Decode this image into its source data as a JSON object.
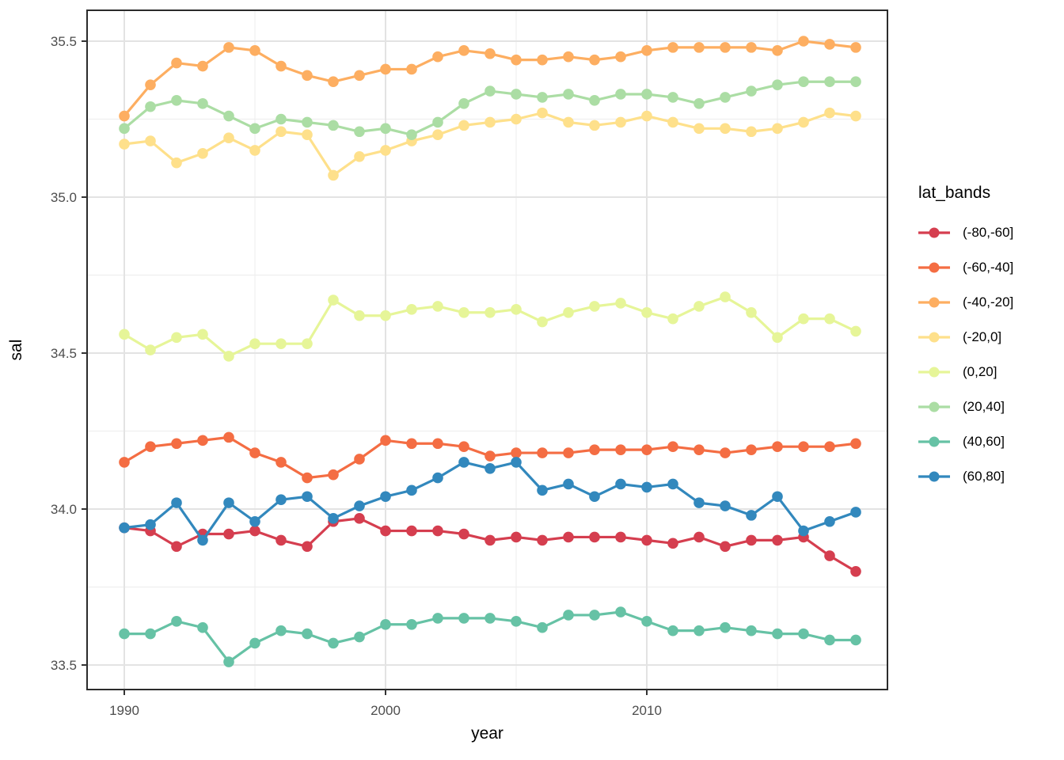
{
  "chart_data": {
    "type": "line",
    "title": "",
    "xlabel": "year",
    "ylabel": "sal",
    "legend_title": "lat_bands",
    "legend_position": "right",
    "grid": true,
    "xlim": [
      1988.6,
      2019.2
    ],
    "ylim": [
      33.42,
      35.6
    ],
    "x_ticks": [
      {
        "value": 1990,
        "label": "1990"
      },
      {
        "value": 2000,
        "label": "2000"
      },
      {
        "value": 2010,
        "label": "2010"
      }
    ],
    "x_minor_ticks": [
      1995,
      2005,
      2015
    ],
    "y_ticks": [
      {
        "value": 33.5,
        "label": "33.5"
      },
      {
        "value": 34.0,
        "label": "34.0"
      },
      {
        "value": 34.5,
        "label": "34.5"
      },
      {
        "value": 35.0,
        "label": "35.0"
      },
      {
        "value": 35.5,
        "label": "35.5"
      }
    ],
    "y_minor_ticks": [
      33.75,
      34.25,
      34.75,
      35.25
    ],
    "x": [
      1990,
      1991,
      1992,
      1993,
      1994,
      1995,
      1996,
      1997,
      1998,
      1999,
      2000,
      2001,
      2002,
      2003,
      2004,
      2005,
      2006,
      2007,
      2008,
      2009,
      2010,
      2011,
      2012,
      2013,
      2014,
      2015,
      2016,
      2017,
      2018
    ],
    "series": [
      {
        "name": "(-80,-60]",
        "color": "#d53e4f",
        "values": [
          33.94,
          33.93,
          33.88,
          33.92,
          33.92,
          33.93,
          33.9,
          33.88,
          33.96,
          33.97,
          33.93,
          33.93,
          33.93,
          33.92,
          33.9,
          33.91,
          33.9,
          33.91,
          33.91,
          33.91,
          33.9,
          33.89,
          33.91,
          33.88,
          33.9,
          33.9,
          33.91,
          33.85,
          33.8
        ]
      },
      {
        "name": "(-60,-40]",
        "color": "#f46d43",
        "values": [
          34.15,
          34.2,
          34.21,
          34.22,
          34.23,
          34.18,
          34.15,
          34.1,
          34.11,
          34.16,
          34.22,
          34.21,
          34.21,
          34.2,
          34.17,
          34.18,
          34.18,
          34.18,
          34.19,
          34.19,
          34.19,
          34.2,
          34.19,
          34.18,
          34.19,
          34.2,
          34.2,
          34.2,
          34.21
        ]
      },
      {
        "name": "(-40,-20]",
        "color": "#fdae61",
        "values": [
          35.26,
          35.36,
          35.43,
          35.42,
          35.48,
          35.47,
          35.42,
          35.39,
          35.37,
          35.39,
          35.41,
          35.41,
          35.45,
          35.47,
          35.46,
          35.44,
          35.44,
          35.45,
          35.44,
          35.45,
          35.47,
          35.48,
          35.48,
          35.48,
          35.48,
          35.47,
          35.5,
          35.49,
          35.48
        ]
      },
      {
        "name": "(-20,0]",
        "color": "#fee08b",
        "values": [
          35.17,
          35.18,
          35.11,
          35.14,
          35.19,
          35.15,
          35.21,
          35.2,
          35.07,
          35.13,
          35.15,
          35.18,
          35.2,
          35.23,
          35.24,
          35.25,
          35.27,
          35.24,
          35.23,
          35.24,
          35.26,
          35.24,
          35.22,
          35.22,
          35.21,
          35.22,
          35.24,
          35.27,
          35.26
        ]
      },
      {
        "name": "(0,20]",
        "color": "#e6f598",
        "values": [
          34.56,
          34.51,
          34.55,
          34.56,
          34.49,
          34.53,
          34.53,
          34.53,
          34.67,
          34.62,
          34.62,
          34.64,
          34.65,
          34.63,
          34.63,
          34.64,
          34.6,
          34.63,
          34.65,
          34.66,
          34.63,
          34.61,
          34.65,
          34.68,
          34.63,
          34.55,
          34.61,
          34.61,
          34.57
        ]
      },
      {
        "name": "(20,40]",
        "color": "#abdda4",
        "values": [
          35.22,
          35.29,
          35.31,
          35.3,
          35.26,
          35.22,
          35.25,
          35.24,
          35.23,
          35.21,
          35.22,
          35.2,
          35.24,
          35.3,
          35.34,
          35.33,
          35.32,
          35.33,
          35.31,
          35.33,
          35.33,
          35.32,
          35.3,
          35.32,
          35.34,
          35.36,
          35.37,
          35.37,
          35.37
        ]
      },
      {
        "name": "(40,60]",
        "color": "#66c2a5",
        "values": [
          33.6,
          33.6,
          33.64,
          33.62,
          33.51,
          33.57,
          33.61,
          33.6,
          33.57,
          33.59,
          33.63,
          33.63,
          33.65,
          33.65,
          33.65,
          33.64,
          33.62,
          33.66,
          33.66,
          33.67,
          33.64,
          33.61,
          33.61,
          33.62,
          33.61,
          33.6,
          33.6,
          33.58,
          33.58
        ]
      },
      {
        "name": "(60,80]",
        "color": "#3288bd",
        "values": [
          33.94,
          33.95,
          34.02,
          33.9,
          34.02,
          33.96,
          34.03,
          34.04,
          33.97,
          34.01,
          34.04,
          34.06,
          34.1,
          34.15,
          34.13,
          34.15,
          34.06,
          34.08,
          34.04,
          34.08,
          34.07,
          34.08,
          34.02,
          34.01,
          33.98,
          34.04,
          33.93,
          33.96,
          33.99
        ]
      }
    ],
    "style": {
      "panel_border": "#2b2b2b",
      "major_grid": "#e3e3e3",
      "minor_grid": "#efefef",
      "tick_label_color": "#4d4d4d",
      "background": "#ffffff"
    }
  }
}
